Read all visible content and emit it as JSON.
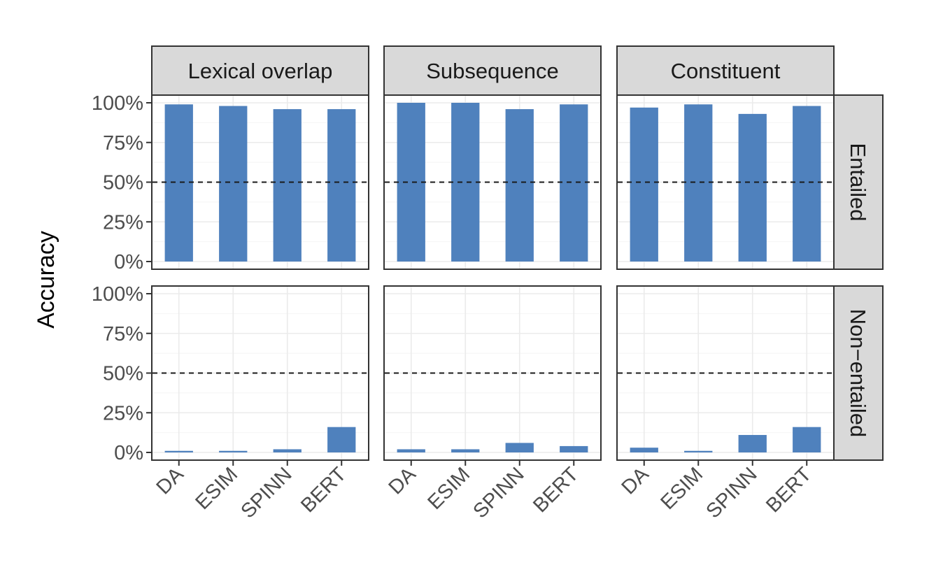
{
  "chart_data": {
    "type": "bar",
    "ylabel": "Accuracy",
    "xlabel": "",
    "ylim": [
      0,
      100
    ],
    "y_ticks": [
      "0%",
      "25%",
      "50%",
      "75%",
      "100%"
    ],
    "y_tick_values": [
      0,
      25,
      50,
      75,
      100
    ],
    "reference_line": 50,
    "categories": [
      "DA",
      "ESIM",
      "SPINN",
      "BERT"
    ],
    "column_facets": [
      "Lexical overlap",
      "Subsequence",
      "Constituent"
    ],
    "row_facets": [
      "Entailed",
      "Non−entailed"
    ],
    "bar_color": "#4f81bd",
    "grid": true,
    "panels": [
      {
        "row": "Entailed",
        "column": "Lexical overlap",
        "values": [
          99,
          98,
          96,
          96
        ]
      },
      {
        "row": "Entailed",
        "column": "Subsequence",
        "values": [
          100,
          100,
          96,
          99
        ]
      },
      {
        "row": "Entailed",
        "column": "Constituent",
        "values": [
          97,
          99,
          93,
          98
        ]
      },
      {
        "row": "Non−entailed",
        "column": "Lexical overlap",
        "values": [
          1,
          1,
          2,
          16
        ]
      },
      {
        "row": "Non−entailed",
        "column": "Subsequence",
        "values": [
          2,
          2,
          6,
          4
        ]
      },
      {
        "row": "Non−entailed",
        "column": "Constituent",
        "values": [
          3,
          1,
          11,
          16
        ]
      }
    ]
  }
}
